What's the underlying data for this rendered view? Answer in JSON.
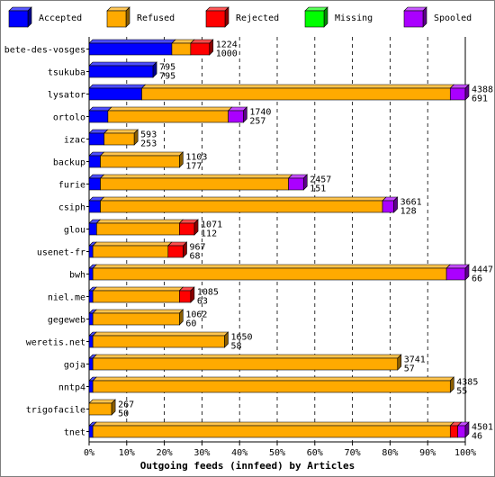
{
  "chart_data": {
    "type": "bar",
    "stacked": true,
    "orientation": "horizontal",
    "title": "Outgoing feeds (innfeed) by Articles",
    "legend": [
      {
        "name": "Accepted",
        "color": "#0000ff"
      },
      {
        "name": "Refused",
        "color": "#ffaa00"
      },
      {
        "name": "Rejected",
        "color": "#ff0000"
      },
      {
        "name": "Missing",
        "color": "#00ff00"
      },
      {
        "name": "Spooled",
        "color": "#aa00ff"
      }
    ],
    "legend_position": "top",
    "x_ticks": [
      "0%",
      "10%",
      "20%",
      "30%",
      "40%",
      "50%",
      "60%",
      "70%",
      "80%",
      "90%",
      "100%"
    ],
    "xlim": [
      0,
      100
    ],
    "grid": true,
    "rows": [
      {
        "host": "bete-des-vosges",
        "label_top": "1224",
        "label_bottom": "1000",
        "segments": [
          22,
          5,
          5,
          0,
          0
        ]
      },
      {
        "host": "tsukuba",
        "label_top": "795",
        "label_bottom": "795",
        "segments": [
          17,
          0,
          0,
          0,
          0
        ]
      },
      {
        "host": "lysator",
        "label_top": "4388",
        "label_bottom": "691",
        "segments": [
          14,
          82,
          0,
          0,
          4
        ]
      },
      {
        "host": "ortolo",
        "label_top": "1740",
        "label_bottom": "257",
        "segments": [
          5,
          32,
          0,
          0,
          4
        ]
      },
      {
        "host": "izac",
        "label_top": "593",
        "label_bottom": "253",
        "segments": [
          4,
          8,
          0,
          0,
          0
        ]
      },
      {
        "host": "backup",
        "label_top": "1103",
        "label_bottom": "177",
        "segments": [
          3,
          21,
          0,
          0,
          0
        ]
      },
      {
        "host": "furie",
        "label_top": "2457",
        "label_bottom": "151",
        "segments": [
          3,
          50,
          0,
          0,
          4
        ]
      },
      {
        "host": "csiph",
        "label_top": "3661",
        "label_bottom": "128",
        "segments": [
          3,
          75,
          0,
          0,
          3
        ]
      },
      {
        "host": "glou",
        "label_top": "1071",
        "label_bottom": "112",
        "segments": [
          2,
          22,
          4,
          0,
          0
        ]
      },
      {
        "host": "usenet-fr",
        "label_top": "967",
        "label_bottom": "68",
        "segments": [
          1,
          20,
          4,
          0,
          0
        ]
      },
      {
        "host": "bwh",
        "label_top": "4447",
        "label_bottom": "66",
        "segments": [
          1,
          94,
          0,
          0,
          5
        ]
      },
      {
        "host": "niel.me",
        "label_top": "1085",
        "label_bottom": "63",
        "segments": [
          1,
          23,
          3,
          0,
          0
        ]
      },
      {
        "host": "gegeweb",
        "label_top": "1062",
        "label_bottom": "60",
        "segments": [
          1,
          23,
          0,
          0,
          0
        ]
      },
      {
        "host": "weretis.net",
        "label_top": "1650",
        "label_bottom": "58",
        "segments": [
          1,
          35,
          0,
          0,
          0
        ]
      },
      {
        "host": "goja",
        "label_top": "3741",
        "label_bottom": "57",
        "segments": [
          1,
          81,
          0,
          0,
          0
        ]
      },
      {
        "host": "nntp4",
        "label_top": "4385",
        "label_bottom": "55",
        "segments": [
          1,
          95,
          0,
          0,
          0
        ]
      },
      {
        "host": "trigofacile",
        "label_top": "267",
        "label_bottom": "50",
        "segments": [
          0,
          6,
          0,
          0,
          0
        ]
      },
      {
        "host": "tnet",
        "label_top": "4501",
        "label_bottom": "46",
        "segments": [
          1,
          95,
          2,
          0,
          2
        ]
      }
    ]
  }
}
